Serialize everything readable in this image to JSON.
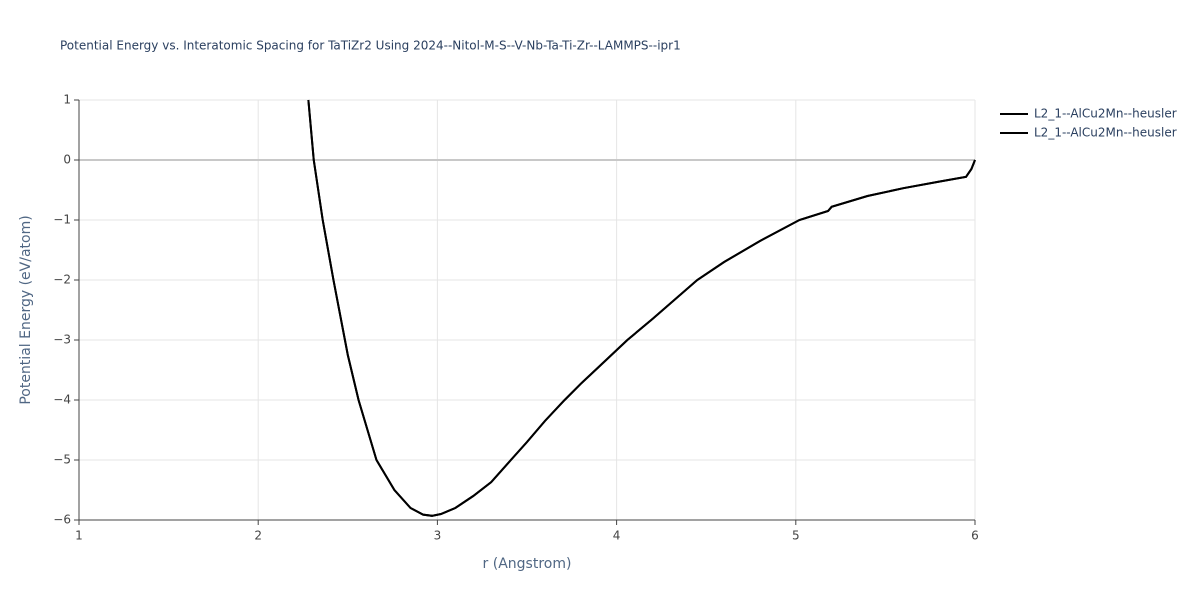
{
  "chart_data": {
    "type": "line",
    "title": "Potential Energy vs. Interatomic Spacing for TaTiZr2 Using 2024--Nitol-M-S--V-Nb-Ta-Ti-Zr--LAMMPS--ipr1",
    "x_label": "r (Angstrom)",
    "y_label": "Potential Energy (eV/atom)",
    "x": [
      2.28,
      2.31,
      2.36,
      2.42,
      2.5,
      2.56,
      2.66,
      2.76,
      2.85,
      2.92,
      2.97,
      3.02,
      3.1,
      3.2,
      3.3,
      3.41,
      3.5,
      3.6,
      3.71,
      3.8,
      3.9,
      4.06,
      4.2,
      4.45,
      4.6,
      4.8,
      5.02,
      5.18,
      5.2,
      5.4,
      5.6,
      5.8,
      5.95,
      5.98,
      6.0
    ],
    "series": [
      {
        "name": "L2_1--AlCu2Mn--heusler",
        "color": "#000000",
        "values": [
          1,
          0,
          -1,
          -2,
          -3.25,
          -4,
          -5,
          -5.5,
          -5.8,
          -5.91,
          -5.93,
          -5.9,
          -5.8,
          -5.6,
          -5.37,
          -5,
          -4.7,
          -4.35,
          -4,
          -3.73,
          -3.45,
          -3,
          -2.65,
          -2,
          -1.7,
          -1.35,
          -1,
          -0.85,
          -0.78,
          -0.6,
          -0.47,
          -0.36,
          -0.28,
          -0.15,
          0
        ]
      },
      {
        "name": "L2_1--AlCu2Mn--heusler",
        "color": "#000000",
        "values": [
          1,
          0,
          -1,
          -2,
          -3.25,
          -4,
          -5,
          -5.5,
          -5.8,
          -5.91,
          -5.93,
          -5.9,
          -5.8,
          -5.6,
          -5.37,
          -5,
          -4.7,
          -4.35,
          -4,
          -3.73,
          -3.45,
          -3,
          -2.65,
          -2,
          -1.7,
          -1.35,
          -1,
          -0.85,
          -0.78,
          -0.6,
          -0.47,
          -0.36,
          -0.28,
          -0.15,
          0
        ]
      }
    ],
    "xlim": [
      1,
      6
    ],
    "xticks": [
      1,
      2,
      3,
      4,
      5,
      6
    ],
    "ylim": [
      -6,
      1
    ],
    "yticks": [
      {
        "value": -6,
        "label": "−6"
      },
      {
        "value": -5,
        "label": "−5"
      },
      {
        "value": -4,
        "label": "−4"
      },
      {
        "value": -3,
        "label": "−3"
      },
      {
        "value": -2,
        "label": "−2"
      },
      {
        "value": -1,
        "label": "−1"
      },
      0,
      1
    ],
    "grid": true,
    "legend": "top-right"
  }
}
